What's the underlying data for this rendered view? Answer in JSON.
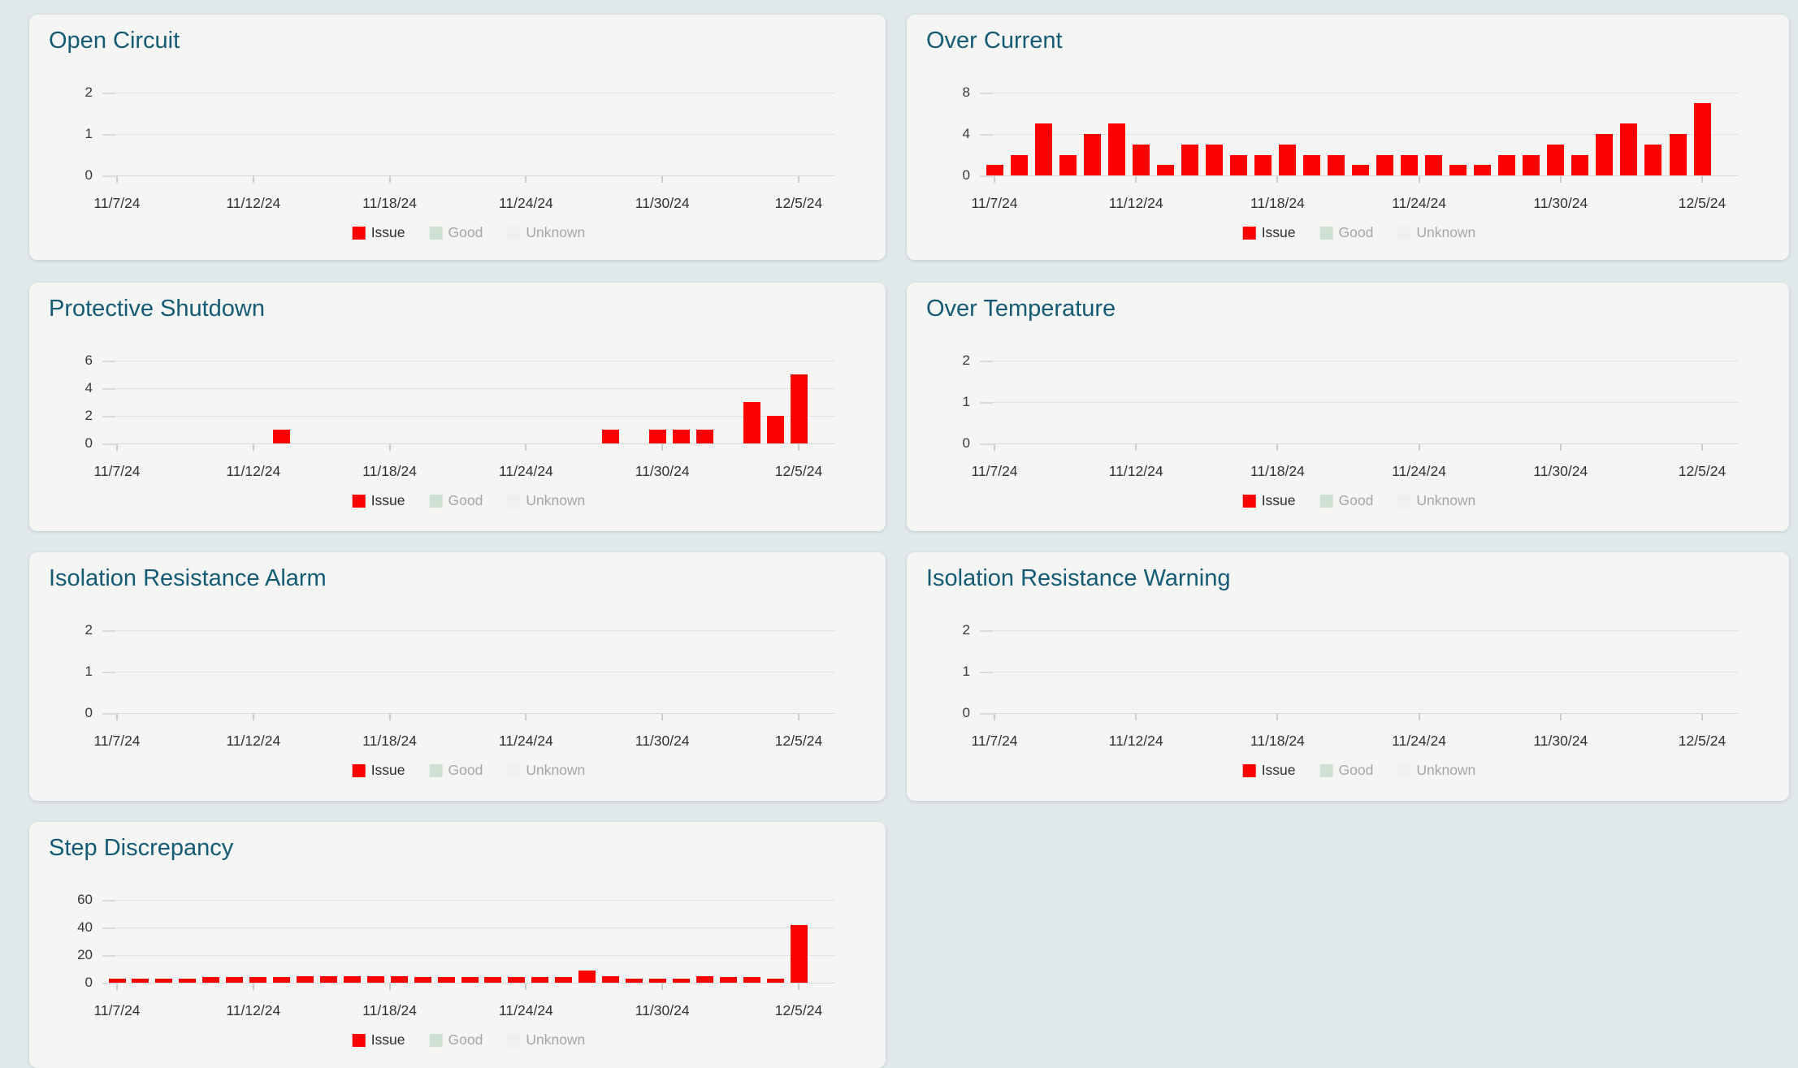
{
  "colors": {
    "page_bg": "#e1e9eb",
    "card_bg": "#f5f5f4",
    "title": "#135b75",
    "bar": "#fb0000",
    "gridline": "#e3e3e3",
    "axis_label": "#35393d",
    "date_label": "#2e3237"
  },
  "legend": {
    "items": [
      {
        "key": "issue",
        "label": "Issue",
        "color": "#fb0000",
        "label_color": "#2b2f33"
      },
      {
        "key": "good",
        "label": "Good",
        "color": "#cde0d2",
        "label_color": "#a3a7a9"
      },
      {
        "key": "unknown",
        "label": "Unknown",
        "color": "#efefed",
        "label_color": "#a3a7a9"
      }
    ]
  },
  "x_axis": {
    "tick_labels": [
      "11/7/24",
      "11/12/24",
      "11/18/24",
      "11/24/24",
      "11/30/24",
      "12/5/24"
    ]
  },
  "chart_data": [
    {
      "key": "open-circuit",
      "title": "Open Circuit",
      "type": "bar",
      "series": [
        {
          "name": "Issue",
          "values": [
            0,
            0,
            0,
            0,
            0,
            0,
            0,
            0,
            0,
            0,
            0,
            0,
            0,
            0,
            0,
            0,
            0,
            0,
            0,
            0,
            0,
            0,
            0,
            0,
            0,
            0,
            0,
            0,
            0,
            0
          ]
        }
      ],
      "x_tick_labels": [
        "11/7/24",
        "11/12/24",
        "11/18/24",
        "11/24/24",
        "11/30/24",
        "12/5/24"
      ],
      "y_ticks": [
        0,
        1,
        2
      ],
      "ylim": [
        0,
        2
      ],
      "legend_entries": [
        "Issue",
        "Good",
        "Unknown"
      ],
      "legend_position": "bottom",
      "grid": true
    },
    {
      "key": "over-current",
      "title": "Over Current",
      "type": "bar",
      "series": [
        {
          "name": "Issue",
          "values": [
            1,
            2,
            5,
            2,
            4,
            5,
            3,
            1,
            3,
            3,
            2,
            2,
            3,
            2,
            2,
            1,
            2,
            2,
            2,
            1,
            1,
            2,
            2,
            3,
            2,
            4,
            5,
            3,
            4,
            7
          ]
        }
      ],
      "x_tick_labels": [
        "11/7/24",
        "11/12/24",
        "11/18/24",
        "11/24/24",
        "11/30/24",
        "12/5/24"
      ],
      "y_ticks": [
        0,
        4,
        8
      ],
      "ylim": [
        0,
        8
      ],
      "legend_entries": [
        "Issue",
        "Good",
        "Unknown"
      ],
      "legend_position": "bottom",
      "grid": true
    },
    {
      "key": "protective-shutdown",
      "title": "Protective Shutdown",
      "type": "bar",
      "series": [
        {
          "name": "Issue",
          "values": [
            0,
            0,
            0,
            0,
            0,
            0,
            0,
            1,
            0,
            0,
            0,
            0,
            0,
            0,
            0,
            0,
            0,
            0,
            0,
            0,
            0,
            1,
            0,
            1,
            1,
            1,
            0,
            3,
            2,
            5
          ]
        }
      ],
      "x_tick_labels": [
        "11/7/24",
        "11/12/24",
        "11/18/24",
        "11/24/24",
        "11/30/24",
        "12/5/24"
      ],
      "y_ticks": [
        0,
        2,
        4,
        6
      ],
      "ylim": [
        0,
        6
      ],
      "legend_entries": [
        "Issue",
        "Good",
        "Unknown"
      ],
      "legend_position": "bottom",
      "grid": true
    },
    {
      "key": "over-temperature",
      "title": "Over Temperature",
      "type": "bar",
      "series": [
        {
          "name": "Issue",
          "values": [
            0,
            0,
            0,
            0,
            0,
            0,
            0,
            0,
            0,
            0,
            0,
            0,
            0,
            0,
            0,
            0,
            0,
            0,
            0,
            0,
            0,
            0,
            0,
            0,
            0,
            0,
            0,
            0,
            0,
            0
          ]
        }
      ],
      "x_tick_labels": [
        "11/7/24",
        "11/12/24",
        "11/18/24",
        "11/24/24",
        "11/30/24",
        "12/5/24"
      ],
      "y_ticks": [
        0,
        1,
        2
      ],
      "ylim": [
        0,
        2
      ],
      "legend_entries": [
        "Issue",
        "Good",
        "Unknown"
      ],
      "legend_position": "bottom",
      "grid": true
    },
    {
      "key": "isolation-resistance-alarm",
      "title": "Isolation Resistance Alarm",
      "type": "bar",
      "series": [
        {
          "name": "Issue",
          "values": [
            0,
            0,
            0,
            0,
            0,
            0,
            0,
            0,
            0,
            0,
            0,
            0,
            0,
            0,
            0,
            0,
            0,
            0,
            0,
            0,
            0,
            0,
            0,
            0,
            0,
            0,
            0,
            0,
            0,
            0
          ]
        }
      ],
      "x_tick_labels": [
        "11/7/24",
        "11/12/24",
        "11/18/24",
        "11/24/24",
        "11/30/24",
        "12/5/24"
      ],
      "y_ticks": [
        0,
        1,
        2
      ],
      "ylim": [
        0,
        2
      ],
      "legend_entries": [
        "Issue",
        "Good",
        "Unknown"
      ],
      "legend_position": "bottom",
      "grid": true
    },
    {
      "key": "isolation-resistance-warning",
      "title": "Isolation Resistance Warning",
      "type": "bar",
      "series": [
        {
          "name": "Issue",
          "values": [
            0,
            0,
            0,
            0,
            0,
            0,
            0,
            0,
            0,
            0,
            0,
            0,
            0,
            0,
            0,
            0,
            0,
            0,
            0,
            0,
            0,
            0,
            0,
            0,
            0,
            0,
            0,
            0,
            0,
            0
          ]
        }
      ],
      "x_tick_labels": [
        "11/7/24",
        "11/12/24",
        "11/18/24",
        "11/24/24",
        "11/30/24",
        "12/5/24"
      ],
      "y_ticks": [
        0,
        1,
        2
      ],
      "ylim": [
        0,
        2
      ],
      "legend_entries": [
        "Issue",
        "Good",
        "Unknown"
      ],
      "legend_position": "bottom",
      "grid": true
    },
    {
      "key": "step-discrepancy",
      "title": "Step Discrepancy",
      "type": "bar",
      "series": [
        {
          "name": "Issue",
          "values": [
            3,
            3,
            3,
            3,
            4,
            4,
            4,
            4,
            5,
            5,
            5,
            5,
            5,
            4,
            4,
            4,
            4,
            4,
            4,
            4,
            9,
            5,
            3,
            3,
            3,
            5,
            4,
            4,
            3,
            42
          ]
        }
      ],
      "x_tick_labels": [
        "11/7/24",
        "11/12/24",
        "11/18/24",
        "11/24/24",
        "11/30/24",
        "12/5/24"
      ],
      "y_ticks": [
        0,
        20,
        40,
        60
      ],
      "ylim": [
        0,
        60
      ],
      "legend_entries": [
        "Issue",
        "Good",
        "Unknown"
      ],
      "legend_position": "bottom",
      "grid": true
    }
  ]
}
